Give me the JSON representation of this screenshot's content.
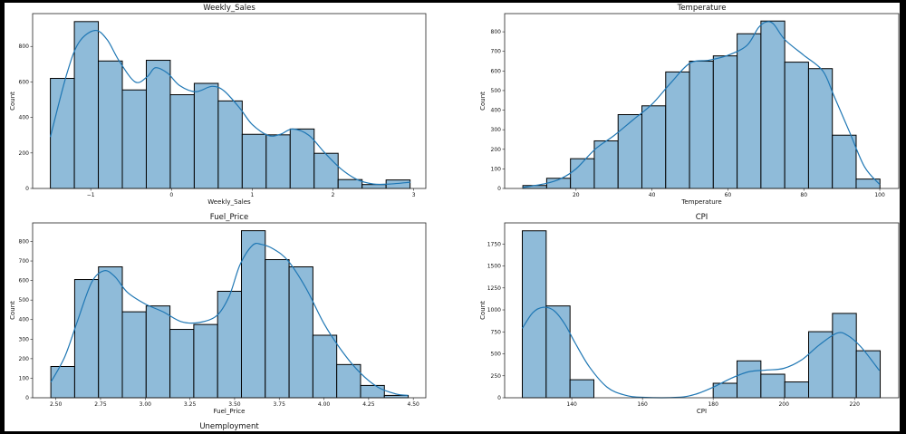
{
  "colors": {
    "bar_fill": "#8fbbd9",
    "bar_edge": "#000000",
    "kde_line": "#1f77b4"
  },
  "next_title": "Unemployment",
  "chart_data": [
    {
      "type": "bar",
      "subtype": "histogram with kde",
      "title": "Weekly_Sales",
      "xlabel": "Weekly_Sales",
      "ylabel": "Count",
      "x_start": -1.5,
      "bin_width": 0.297,
      "counts": [
        620,
        940,
        718,
        555,
        722,
        528,
        592,
        493,
        305,
        302,
        335,
        198,
        50,
        22,
        48
      ],
      "xlim": [
        -1.72,
        3.15
      ],
      "ylim": [
        0,
        985
      ],
      "xticks": [
        -1,
        0,
        1,
        2,
        3
      ],
      "xtick_labels": [
        "−1",
        "0",
        "1",
        "2",
        "3"
      ],
      "yticks": [
        0,
        200,
        400,
        600,
        800
      ],
      "ytick_labels": [
        "0",
        "200",
        "400",
        "600",
        "800"
      ],
      "kde": [
        [
          -1.5,
          290
        ],
        [
          -1.3,
          640
        ],
        [
          -1.15,
          820
        ],
        [
          -0.95,
          890
        ],
        [
          -0.8,
          840
        ],
        [
          -0.65,
          720
        ],
        [
          -0.45,
          600
        ],
        [
          -0.3,
          630
        ],
        [
          -0.2,
          680
        ],
        [
          -0.05,
          650
        ],
        [
          0.1,
          580
        ],
        [
          0.3,
          545
        ],
        [
          0.5,
          575
        ],
        [
          0.65,
          550
        ],
        [
          0.85,
          450
        ],
        [
          1.0,
          360
        ],
        [
          1.2,
          298
        ],
        [
          1.35,
          305
        ],
        [
          1.5,
          335
        ],
        [
          1.7,
          300
        ],
        [
          1.9,
          200
        ],
        [
          2.1,
          110
        ],
        [
          2.3,
          50
        ],
        [
          2.5,
          25
        ],
        [
          2.7,
          25
        ],
        [
          2.96,
          35
        ]
      ]
    },
    {
      "type": "bar",
      "subtype": "histogram with kde",
      "title": "Temperature",
      "xlabel": "Temperature",
      "ylabel": "Count",
      "x_start": 6.0,
      "bin_width": 6.27,
      "counts": [
        15,
        52,
        152,
        243,
        377,
        422,
        595,
        650,
        677,
        790,
        855,
        645,
        612,
        272,
        48
      ],
      "xlim": [
        1.2,
        105
      ],
      "ylim": [
        0,
        893
      ],
      "xticks": [
        20,
        40,
        60,
        80,
        100
      ],
      "xtick_labels": [
        "20",
        "40",
        "60",
        "80",
        "100"
      ],
      "yticks": [
        0,
        100,
        200,
        300,
        400,
        500,
        600,
        700,
        800
      ],
      "ytick_labels": [
        "0",
        "100",
        "200",
        "300",
        "400",
        "500",
        "600",
        "700",
        "800"
      ],
      "kde": [
        [
          6,
          5
        ],
        [
          12,
          25
        ],
        [
          16,
          50
        ],
        [
          20,
          100
        ],
        [
          25,
          200
        ],
        [
          30,
          270
        ],
        [
          35,
          350
        ],
        [
          40,
          430
        ],
        [
          45,
          540
        ],
        [
          50,
          640
        ],
        [
          55,
          655
        ],
        [
          60,
          680
        ],
        [
          65,
          730
        ],
        [
          68,
          820
        ],
        [
          70,
          850
        ],
        [
          72,
          840
        ],
        [
          75,
          760
        ],
        [
          80,
          680
        ],
        [
          85,
          600
        ],
        [
          88,
          470
        ],
        [
          92,
          290
        ],
        [
          96,
          110
        ],
        [
          100,
          20
        ]
      ]
    },
    {
      "type": "bar",
      "subtype": "histogram with kde",
      "title": "Fuel_Price",
      "xlabel": "Fuel_Price",
      "ylabel": "Count",
      "x_start": 2.472,
      "bin_width": 0.1333,
      "counts": [
        160,
        605,
        670,
        440,
        470,
        350,
        375,
        545,
        855,
        707,
        670,
        320,
        170,
        63,
        12
      ],
      "xlim": [
        2.37,
        4.57
      ],
      "ylim": [
        0,
        895
      ],
      "xticks": [
        2.5,
        2.75,
        3.0,
        3.25,
        3.5,
        3.75,
        4.0,
        4.25,
        4.5
      ],
      "xtick_labels": [
        "2.50",
        "2.75",
        "3.00",
        "3.25",
        "3.50",
        "3.75",
        "4.00",
        "4.25",
        "4.50"
      ],
      "yticks": [
        0,
        100,
        200,
        300,
        400,
        500,
        600,
        700,
        800
      ],
      "ytick_labels": [
        "0",
        "100",
        "200",
        "300",
        "400",
        "500",
        "600",
        "700",
        "800"
      ],
      "kde": [
        [
          2.472,
          80
        ],
        [
          2.55,
          210
        ],
        [
          2.62,
          390
        ],
        [
          2.7,
          590
        ],
        [
          2.77,
          650
        ],
        [
          2.83,
          620
        ],
        [
          2.9,
          540
        ],
        [
          3.0,
          480
        ],
        [
          3.1,
          440
        ],
        [
          3.2,
          390
        ],
        [
          3.3,
          385
        ],
        [
          3.4,
          420
        ],
        [
          3.47,
          520
        ],
        [
          3.53,
          680
        ],
        [
          3.6,
          780
        ],
        [
          3.65,
          785
        ],
        [
          3.72,
          760
        ],
        [
          3.8,
          700
        ],
        [
          3.9,
          560
        ],
        [
          4.0,
          380
        ],
        [
          4.1,
          240
        ],
        [
          4.2,
          130
        ],
        [
          4.3,
          55
        ],
        [
          4.4,
          20
        ],
        [
          4.47,
          12
        ]
      ]
    },
    {
      "type": "bar",
      "subtype": "histogram with kde",
      "title": "CPI",
      "xlabel": "CPI",
      "ylabel": "Count",
      "x_start": 126.0,
      "bin_width": 6.75,
      "counts": [
        1900,
        1045,
        205,
        0,
        0,
        0,
        0,
        0,
        165,
        420,
        268,
        180,
        752,
        960,
        535
      ],
      "xlim": [
        121,
        232.5
      ],
      "ylim": [
        0,
        1990
      ],
      "xticks": [
        140,
        160,
        180,
        200,
        220
      ],
      "xtick_labels": [
        "140",
        "160",
        "180",
        "200",
        "220"
      ],
      "yticks": [
        0,
        250,
        500,
        750,
        1000,
        1250,
        1500,
        1750
      ],
      "ytick_labels": [
        "0",
        "250",
        "500",
        "750",
        "1000",
        "1250",
        "1500",
        "1750"
      ],
      "kde": [
        [
          126,
          790
        ],
        [
          129,
          970
        ],
        [
          132,
          1030
        ],
        [
          135,
          990
        ],
        [
          138,
          840
        ],
        [
          141,
          620
        ],
        [
          145,
          350
        ],
        [
          150,
          120
        ],
        [
          155,
          30
        ],
        [
          160,
          5
        ],
        [
          170,
          5
        ],
        [
          175,
          40
        ],
        [
          180,
          120
        ],
        [
          185,
          220
        ],
        [
          190,
          295
        ],
        [
          195,
          315
        ],
        [
          200,
          335
        ],
        [
          205,
          430
        ],
        [
          210,
          600
        ],
        [
          215,
          735
        ],
        [
          218,
          710
        ],
        [
          222,
          570
        ],
        [
          227,
          310
        ]
      ]
    }
  ]
}
